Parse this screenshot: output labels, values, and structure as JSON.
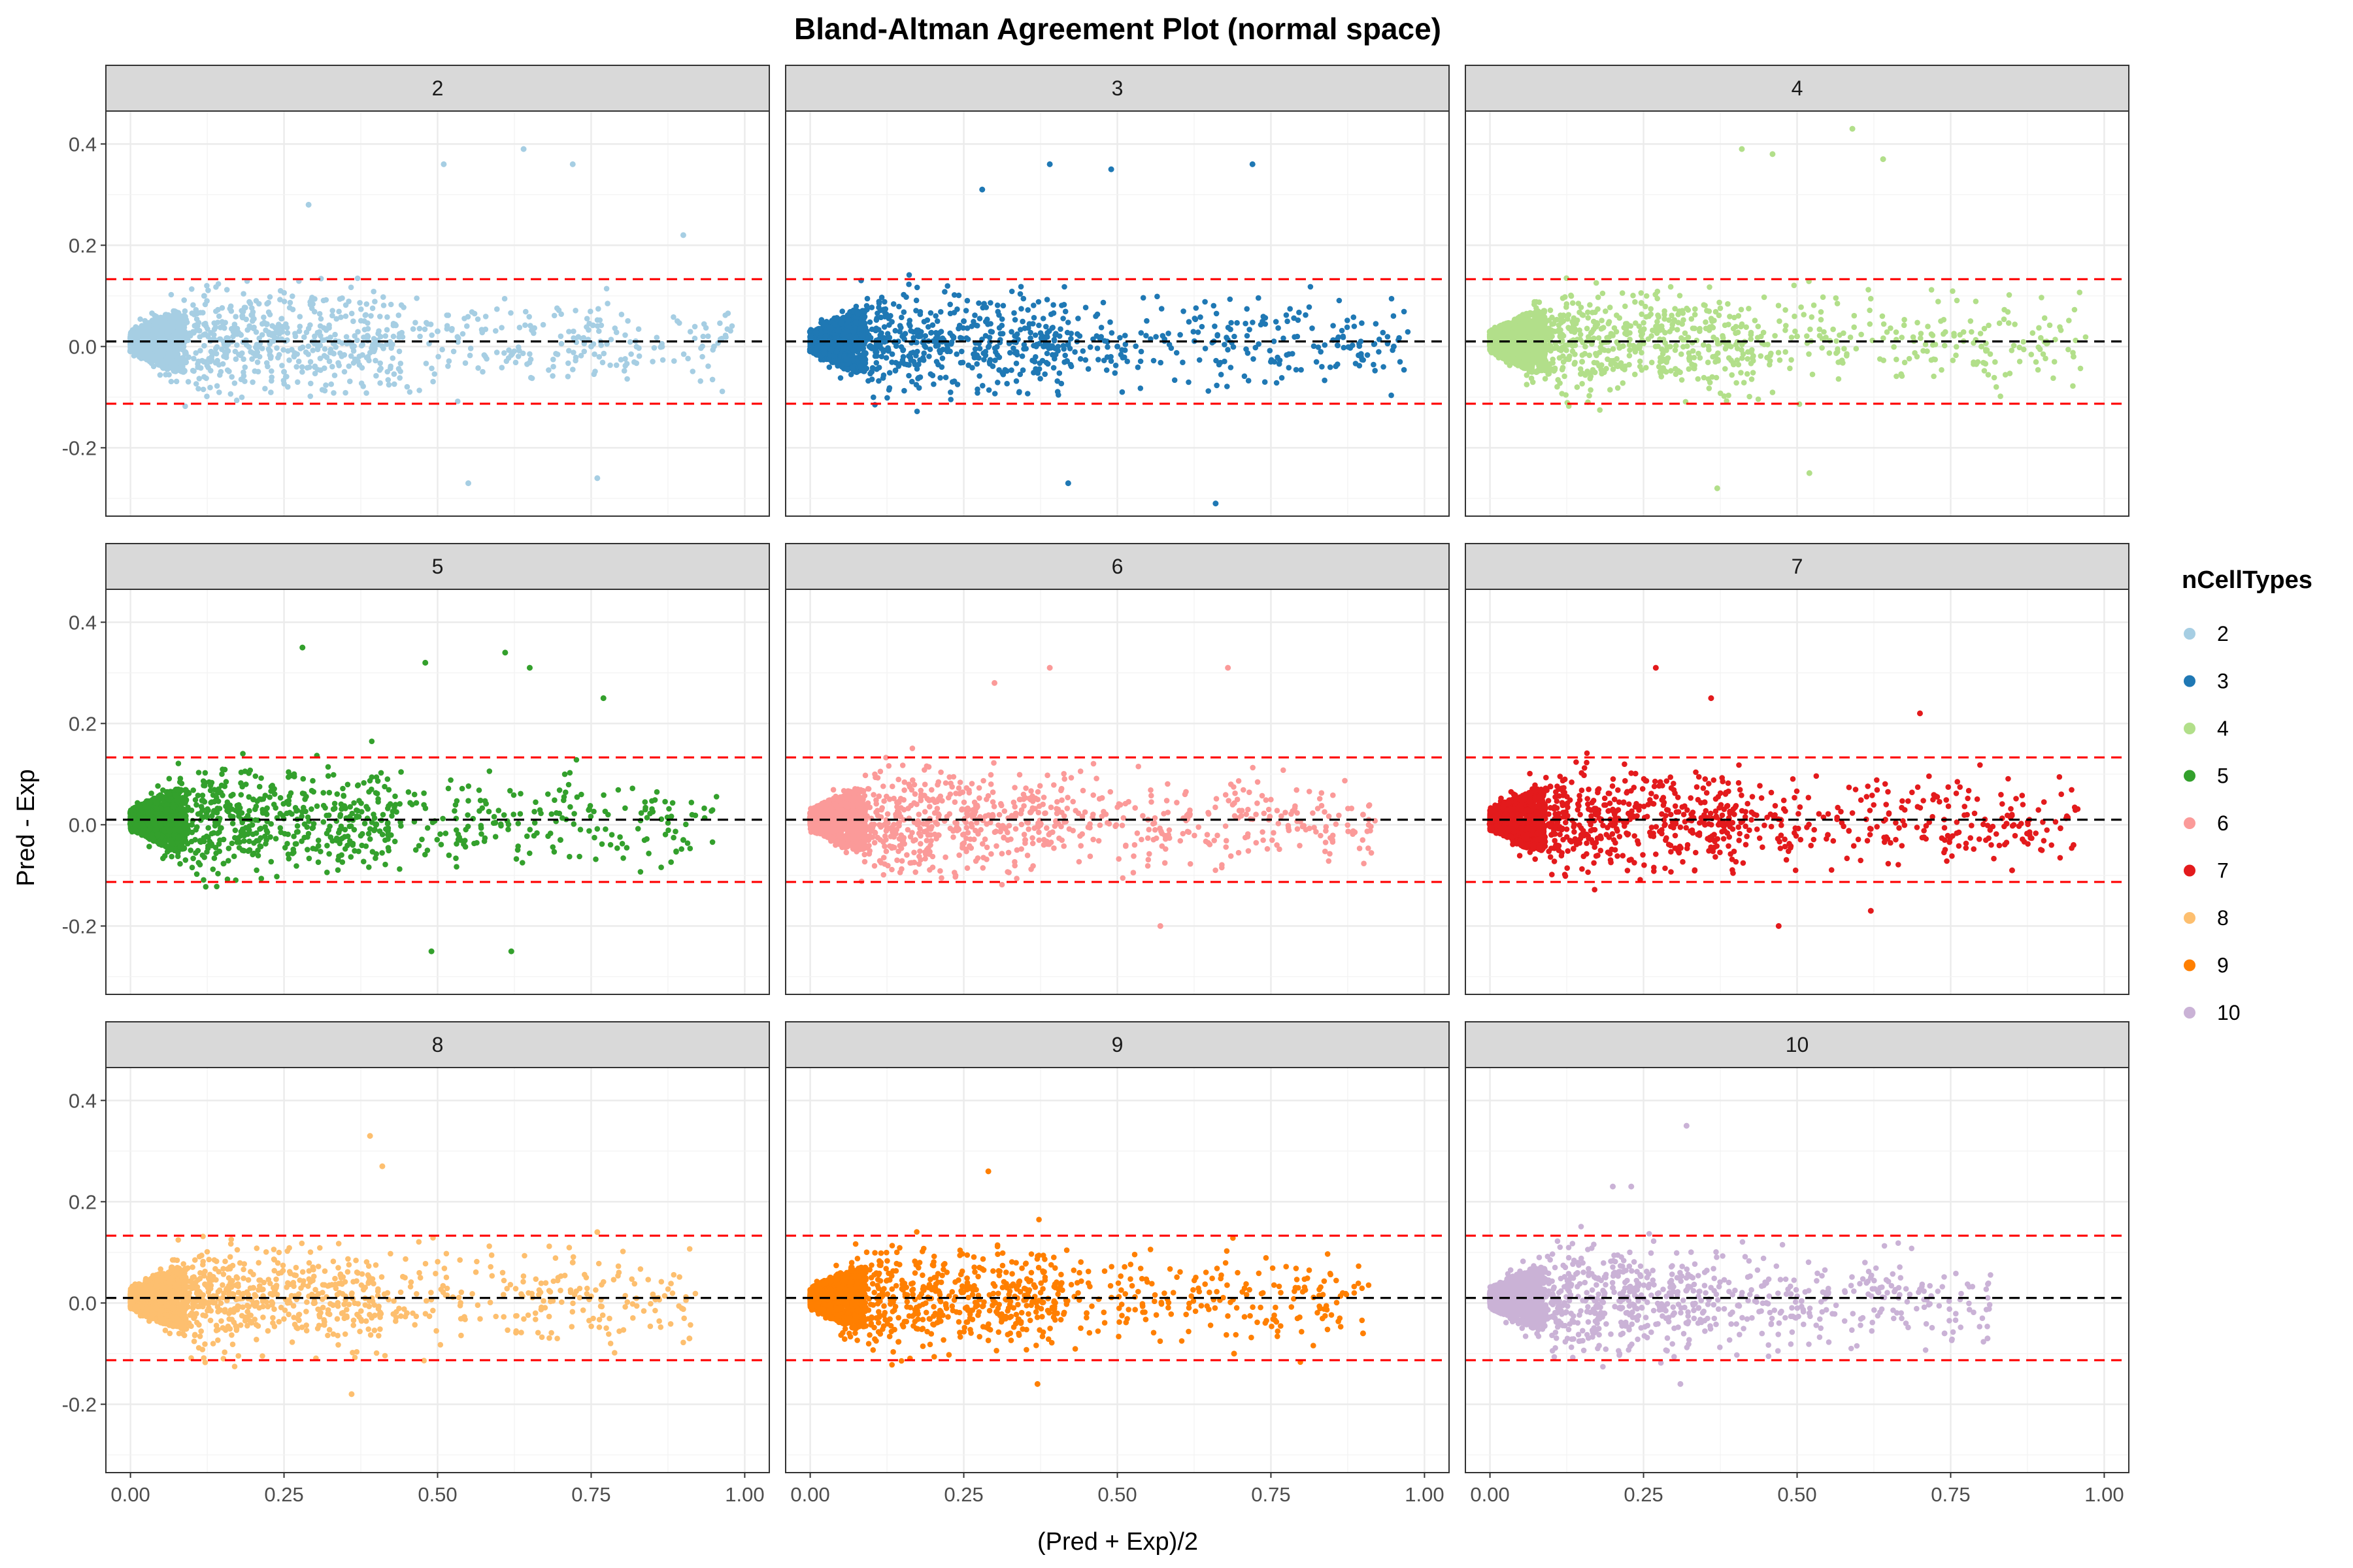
{
  "chart_data": {
    "type": "scatter",
    "title": "Bland-Altman Agreement Plot (normal space)",
    "xlabel": "(Pred + Exp)/2",
    "ylabel": "Pred - Exp",
    "xlim": [
      -0.04,
      1.04
    ],
    "ylim": [
      -0.335,
      0.465
    ],
    "x_ticks": [
      0.0,
      0.25,
      0.5,
      0.75,
      1.0
    ],
    "x_tick_labels": [
      "0.00",
      "0.25",
      "0.50",
      "0.75",
      "1.00"
    ],
    "y_ticks": [
      -0.2,
      0.0,
      0.2,
      0.4
    ],
    "y_tick_labels": [
      "-0.2",
      "0.0",
      "0.2",
      "0.4"
    ],
    "grid": true,
    "layout": "facet_wrap 3x3, shared axes",
    "reference_lines": {
      "mean_bias": 0.01,
      "upper_limit": 0.133,
      "lower_limit": -0.113,
      "mean_color": "#000000",
      "limit_color": "#FF0000",
      "style": "dashed"
    },
    "legend": {
      "title": "nCellTypes",
      "placement": "right",
      "entries": [
        {
          "label": "2",
          "color": "#A6CEE3"
        },
        {
          "label": "3",
          "color": "#1F78B4"
        },
        {
          "label": "4",
          "color": "#B2DF8A"
        },
        {
          "label": "5",
          "color": "#33A02C"
        },
        {
          "label": "6",
          "color": "#FB9A99"
        },
        {
          "label": "7",
          "color": "#E31A1C"
        },
        {
          "label": "8",
          "color": "#FDBF6F"
        },
        {
          "label": "9",
          "color": "#FF7F00"
        },
        {
          "label": "10",
          "color": "#CAB2D6"
        }
      ]
    },
    "panels": [
      {
        "label": "2",
        "color": "#A6CEE3",
        "x_range": [
          0.0,
          0.98
        ],
        "y_range": [
          -0.28,
          0.4
        ],
        "core_points": [
          [
            0.02,
            0.01
          ],
          [
            0.05,
            0.0
          ],
          [
            0.08,
            0.05
          ],
          [
            0.12,
            0.1
          ],
          [
            0.25,
            -0.05
          ],
          [
            0.5,
            0.03
          ],
          [
            0.75,
            0.0
          ],
          [
            0.95,
            0.0
          ]
        ],
        "extreme_points": [
          [
            0.64,
            0.39
          ],
          [
            0.51,
            0.36
          ],
          [
            0.72,
            0.36
          ],
          [
            0.55,
            -0.27
          ],
          [
            0.76,
            -0.26
          ],
          [
            0.29,
            0.28
          ],
          [
            0.9,
            0.22
          ]
        ]
      },
      {
        "label": "3",
        "color": "#1F78B4",
        "x_range": [
          0.0,
          0.98
        ],
        "y_range": [
          -0.31,
          0.36
        ],
        "core_points": [
          [
            0.02,
            0.01
          ],
          [
            0.06,
            0.03
          ],
          [
            0.1,
            -0.05
          ],
          [
            0.25,
            0.05
          ],
          [
            0.5,
            0.0
          ],
          [
            0.75,
            -0.03
          ],
          [
            0.95,
            0.0
          ]
        ],
        "extreme_points": [
          [
            0.66,
            -0.31
          ],
          [
            0.39,
            0.36
          ],
          [
            0.49,
            0.35
          ],
          [
            0.72,
            0.36
          ],
          [
            0.42,
            -0.27
          ],
          [
            0.28,
            0.31
          ]
        ]
      },
      {
        "label": "4",
        "color": "#B2DF8A",
        "x_range": [
          0.0,
          0.97
        ],
        "y_range": [
          -0.28,
          0.43
        ],
        "core_points": [
          [
            0.02,
            0.01
          ],
          [
            0.05,
            0.04
          ],
          [
            0.15,
            -0.03
          ],
          [
            0.3,
            0.05
          ],
          [
            0.5,
            0.02
          ],
          [
            0.8,
            0.0
          ],
          [
            0.95,
            -0.02
          ]
        ],
        "extreme_points": [
          [
            0.59,
            0.43
          ],
          [
            0.41,
            0.39
          ],
          [
            0.46,
            0.38
          ],
          [
            0.64,
            0.37
          ],
          [
            0.37,
            -0.28
          ],
          [
            0.52,
            -0.25
          ]
        ]
      },
      {
        "label": "5",
        "color": "#33A02C",
        "x_range": [
          0.0,
          0.96
        ],
        "y_range": [
          -0.25,
          0.35
        ],
        "core_points": [
          [
            0.02,
            0.01
          ],
          [
            0.06,
            0.03
          ],
          [
            0.1,
            0.0
          ],
          [
            0.2,
            0.05
          ],
          [
            0.4,
            0.0
          ],
          [
            0.7,
            -0.03
          ],
          [
            0.9,
            -0.03
          ]
        ],
        "extreme_points": [
          [
            0.28,
            0.35
          ],
          [
            0.61,
            0.34
          ],
          [
            0.48,
            0.32
          ],
          [
            0.65,
            0.31
          ],
          [
            0.49,
            -0.25
          ],
          [
            0.62,
            -0.25
          ],
          [
            0.77,
            0.25
          ]
        ]
      },
      {
        "label": "6",
        "color": "#FB9A99",
        "x_range": [
          0.0,
          0.92
        ],
        "y_range": [
          -0.2,
          0.31
        ],
        "core_points": [
          [
            0.02,
            0.01
          ],
          [
            0.05,
            0.04
          ],
          [
            0.1,
            0.0
          ],
          [
            0.2,
            0.05
          ],
          [
            0.35,
            -0.03
          ],
          [
            0.55,
            0.01
          ],
          [
            0.85,
            -0.03
          ]
        ],
        "extreme_points": [
          [
            0.68,
            0.31
          ],
          [
            0.39,
            0.31
          ],
          [
            0.3,
            0.28
          ],
          [
            0.57,
            -0.2
          ],
          [
            0.9,
            0.02
          ]
        ]
      },
      {
        "label": "7",
        "color": "#E31A1C",
        "x_range": [
          0.0,
          0.96
        ],
        "y_range": [
          -0.2,
          0.31
        ],
        "core_points": [
          [
            0.02,
            0.01
          ],
          [
            0.05,
            0.03
          ],
          [
            0.1,
            -0.02
          ],
          [
            0.2,
            0.03
          ],
          [
            0.35,
            0.0
          ],
          [
            0.55,
            -0.02
          ]
        ],
        "extreme_points": [
          [
            0.27,
            0.31
          ],
          [
            0.7,
            0.22
          ],
          [
            0.36,
            0.25
          ],
          [
            0.85,
            -0.09
          ],
          [
            0.95,
            -0.04
          ],
          [
            0.62,
            -0.17
          ],
          [
            0.47,
            -0.2
          ]
        ]
      },
      {
        "label": "8",
        "color": "#FDBF6F",
        "x_range": [
          0.0,
          0.92
        ],
        "y_range": [
          -0.18,
          0.33
        ],
        "core_points": [
          [
            0.02,
            0.01
          ],
          [
            0.05,
            0.02
          ],
          [
            0.1,
            -0.02
          ],
          [
            0.2,
            0.03
          ],
          [
            0.3,
            0.0
          ],
          [
            0.45,
            -0.02
          ]
        ],
        "extreme_points": [
          [
            0.39,
            0.33
          ],
          [
            0.41,
            0.27
          ],
          [
            0.36,
            -0.18
          ],
          [
            0.72,
            0.08
          ],
          [
            0.91,
            -0.07
          ],
          [
            0.76,
            0.14
          ]
        ]
      },
      {
        "label": "9",
        "color": "#FF7F00",
        "x_range": [
          0.0,
          0.91
        ],
        "y_range": [
          -0.16,
          0.26
        ],
        "core_points": [
          [
            0.02,
            0.01
          ],
          [
            0.05,
            0.02
          ],
          [
            0.1,
            -0.03
          ],
          [
            0.2,
            0.03
          ],
          [
            0.3,
            0.0
          ],
          [
            0.45,
            -0.02
          ]
        ],
        "extreme_points": [
          [
            0.29,
            0.26
          ],
          [
            0.79,
            0.03
          ],
          [
            0.9,
            -0.06
          ],
          [
            0.69,
            -0.1
          ],
          [
            0.37,
            -0.16
          ]
        ]
      },
      {
        "label": "10",
        "color": "#CAB2D6",
        "x_range": [
          0.0,
          0.82
        ],
        "y_range": [
          -0.16,
          0.35
        ],
        "core_points": [
          [
            0.02,
            0.01
          ],
          [
            0.05,
            0.02
          ],
          [
            0.1,
            0.0
          ],
          [
            0.2,
            0.03
          ],
          [
            0.3,
            -0.02
          ],
          [
            0.45,
            0.0
          ]
        ],
        "extreme_points": [
          [
            0.32,
            0.35
          ],
          [
            0.2,
            0.23
          ],
          [
            0.23,
            0.23
          ],
          [
            0.81,
            -0.07
          ],
          [
            0.74,
            -0.06
          ],
          [
            0.31,
            -0.16
          ]
        ]
      }
    ]
  }
}
